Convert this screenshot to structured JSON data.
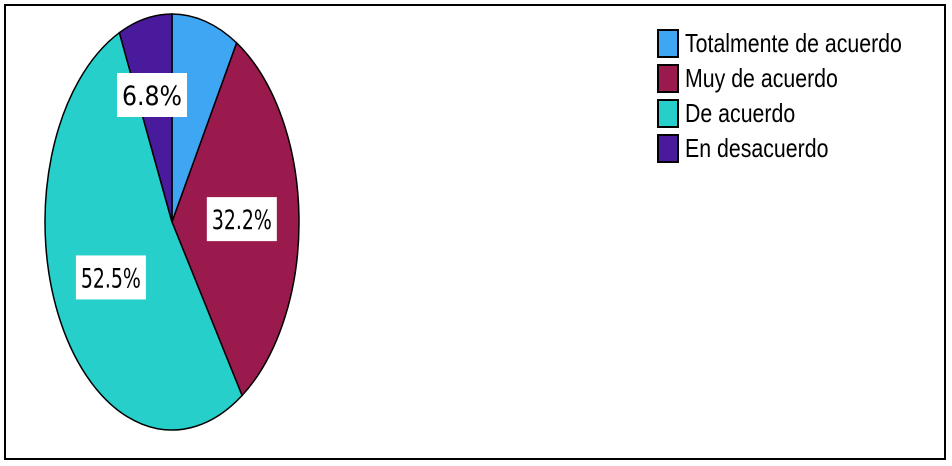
{
  "chart_data": {
    "type": "pie",
    "slices": [
      {
        "label": "Totalmente de acuerdo",
        "value": 8.5,
        "value_label": "",
        "color": "#3ea6f2"
      },
      {
        "label": "Muy de acuerdo",
        "value": 32.2,
        "value_label": "32.2%",
        "color": "#9a1a4e"
      },
      {
        "label": "De acuerdo",
        "value": 52.5,
        "value_label": "52.5%",
        "color": "#27cfcb"
      },
      {
        "label": "En desacuerdo",
        "value": 6.8,
        "value_label": "6.8%",
        "color": "#4a1a9c"
      }
    ],
    "legend_position": "top-right",
    "start_angle": "top",
    "direction": "clockwise"
  }
}
